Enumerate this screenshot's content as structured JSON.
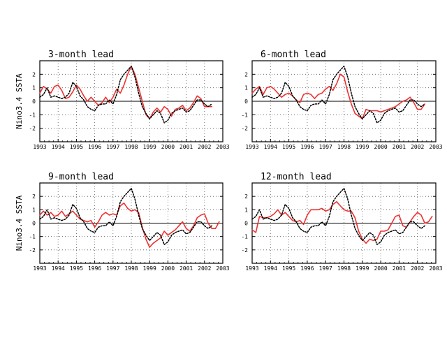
{
  "figure": {
    "colors": {
      "forecast": "#ee3333",
      "observed": "#000000",
      "axis": "#000000",
      "grid": "#555555"
    }
  },
  "chart_data": [
    {
      "type": "line",
      "title": "3-month lead",
      "ylabel": "Nino3.4 SSTA",
      "xlim": [
        1993,
        2003
      ],
      "ylim": [
        -3,
        3
      ],
      "x_ticks": [
        "1993",
        "1994",
        "1995",
        "1996",
        "1997",
        "1998",
        "1999",
        "2000",
        "2001",
        "2002",
        "2003"
      ],
      "y_ticks": [
        "2",
        "1",
        "0",
        "-1",
        "-2"
      ],
      "grid": true,
      "zero_line": true,
      "series": [
        {
          "style": "solid-red",
          "x": [
            1993.0,
            1993.2,
            1993.4,
            1993.6,
            1993.8,
            1994.0,
            1994.2,
            1994.4,
            1994.6,
            1994.8,
            1995.0,
            1995.2,
            1995.4,
            1995.6,
            1995.8,
            1996.0,
            1996.2,
            1996.4,
            1996.6,
            1996.8,
            1997.0,
            1997.2,
            1997.4,
            1997.6,
            1997.8,
            1998.0,
            1998.2,
            1998.4,
            1998.6,
            1998.8,
            1999.0,
            1999.2,
            1999.4,
            1999.6,
            1999.8,
            2000.0,
            2000.2,
            2000.4,
            2000.6,
            2000.8,
            2001.0,
            2001.2,
            2001.4,
            2001.6,
            2001.8,
            2002.0,
            2002.2,
            2002.4
          ],
          "y": [
            0.6,
            1.1,
            0.9,
            0.6,
            1.1,
            1.2,
            0.8,
            0.2,
            0.3,
            0.7,
            1.2,
            0.9,
            0.4,
            0.0,
            0.3,
            0.0,
            -0.3,
            -0.1,
            0.3,
            -0.1,
            0.3,
            0.9,
            0.6,
            1.2,
            2.0,
            2.6,
            2.0,
            1.0,
            0.0,
            -1.0,
            -1.3,
            -0.8,
            -0.5,
            -0.8,
            -0.4,
            -0.6,
            -1.1,
            -0.6,
            -0.5,
            -0.3,
            -0.7,
            -0.5,
            -0.1,
            0.4,
            0.2,
            -0.4,
            -0.4,
            -0.4
          ]
        },
        {
          "style": "dotted-black",
          "x": [
            1993.0,
            1993.2,
            1993.4,
            1993.6,
            1993.8,
            1994.0,
            1994.2,
            1994.4,
            1994.6,
            1994.8,
            1995.0,
            1995.2,
            1995.4,
            1995.6,
            1995.8,
            1996.0,
            1996.2,
            1996.4,
            1996.6,
            1996.8,
            1997.0,
            1997.2,
            1997.4,
            1997.6,
            1997.8,
            1998.0,
            1998.2,
            1998.4,
            1998.6,
            1998.8,
            1999.0,
            1999.2,
            1999.4,
            1999.6,
            1999.8,
            2000.0,
            2000.2,
            2000.4,
            2000.6,
            2000.8,
            2001.0,
            2001.2,
            2001.4,
            2001.6,
            2001.8,
            2002.0,
            2002.2,
            2002.4
          ],
          "y": [
            0.3,
            0.5,
            1.0,
            0.3,
            0.4,
            0.3,
            0.2,
            0.3,
            0.6,
            1.4,
            1.1,
            0.4,
            0.1,
            -0.4,
            -0.6,
            -0.7,
            -0.3,
            -0.2,
            -0.2,
            0.1,
            -0.2,
            0.5,
            1.6,
            2.0,
            2.3,
            2.6,
            1.8,
            0.6,
            -0.4,
            -0.9,
            -1.3,
            -1.0,
            -0.7,
            -0.9,
            -1.6,
            -1.4,
            -0.9,
            -0.7,
            -0.6,
            -0.5,
            -0.8,
            -0.7,
            -0.3,
            0.1,
            0.1,
            -0.2,
            -0.4,
            -0.2
          ]
        }
      ]
    },
    {
      "type": "line",
      "title": "6-month lead",
      "ylabel": "",
      "xlim": [
        1993,
        2003
      ],
      "ylim": [
        -3,
        3
      ],
      "x_ticks": [
        "1993",
        "1994",
        "1995",
        "1996",
        "1997",
        "1998",
        "1999",
        "2000",
        "2001",
        "2002",
        "2003"
      ],
      "y_ticks": [
        "2",
        "1",
        "0",
        "-1",
        "-2"
      ],
      "grid": true,
      "zero_line": true,
      "series": [
        {
          "style": "solid-red",
          "x": [
            1993.0,
            1993.2,
            1993.4,
            1993.6,
            1993.8,
            1994.0,
            1994.2,
            1994.4,
            1994.6,
            1994.8,
            1995.0,
            1995.2,
            1995.4,
            1995.6,
            1995.8,
            1996.0,
            1996.2,
            1996.4,
            1996.6,
            1996.8,
            1997.0,
            1997.2,
            1997.4,
            1997.6,
            1997.8,
            1998.0,
            1998.2,
            1998.4,
            1998.6,
            1998.8,
            1999.0,
            1999.2,
            1999.4,
            1999.6,
            1999.8,
            2000.0,
            2000.2,
            2000.4,
            2000.6,
            2000.8,
            2001.0,
            2001.2,
            2001.4,
            2001.6,
            2001.8,
            2002.0,
            2002.2,
            2002.4
          ],
          "y": [
            0.6,
            0.9,
            1.1,
            0.5,
            1.0,
            1.1,
            0.9,
            0.6,
            0.3,
            0.5,
            0.6,
            0.4,
            0.1,
            -0.1,
            0.5,
            0.6,
            0.5,
            0.2,
            0.5,
            0.6,
            0.9,
            1.1,
            0.8,
            1.3,
            2.0,
            1.8,
            0.7,
            -0.2,
            -0.9,
            -1.1,
            -1.3,
            -0.6,
            -0.7,
            -0.7,
            -0.7,
            -0.8,
            -0.7,
            -0.6,
            -0.5,
            -0.4,
            -0.2,
            0.0,
            0.1,
            0.3,
            -0.1,
            -0.6,
            -0.6,
            -0.2
          ]
        },
        {
          "style": "dotted-black",
          "x": [
            1993.0,
            1993.2,
            1993.4,
            1993.6,
            1993.8,
            1994.0,
            1994.2,
            1994.4,
            1994.6,
            1994.8,
            1995.0,
            1995.2,
            1995.4,
            1995.6,
            1995.8,
            1996.0,
            1996.2,
            1996.4,
            1996.6,
            1996.8,
            1997.0,
            1997.2,
            1997.4,
            1997.6,
            1997.8,
            1998.0,
            1998.2,
            1998.4,
            1998.6,
            1998.8,
            1999.0,
            1999.2,
            1999.4,
            1999.6,
            1999.8,
            2000.0,
            2000.2,
            2000.4,
            2000.6,
            2000.8,
            2001.0,
            2001.2,
            2001.4,
            2001.6,
            2001.8,
            2002.0,
            2002.2,
            2002.4
          ],
          "y": [
            0.3,
            0.5,
            1.0,
            0.3,
            0.4,
            0.3,
            0.2,
            0.3,
            0.6,
            1.4,
            1.1,
            0.4,
            0.1,
            -0.4,
            -0.6,
            -0.7,
            -0.3,
            -0.2,
            -0.2,
            0.1,
            -0.2,
            0.5,
            1.6,
            2.0,
            2.3,
            2.6,
            1.8,
            0.6,
            -0.4,
            -0.9,
            -1.3,
            -1.0,
            -0.7,
            -0.9,
            -1.6,
            -1.4,
            -0.9,
            -0.7,
            -0.6,
            -0.5,
            -0.8,
            -0.7,
            -0.3,
            0.1,
            0.1,
            -0.2,
            -0.4,
            -0.2
          ]
        }
      ]
    },
    {
      "type": "line",
      "title": "9-month lead",
      "ylabel": "Nino3.4 SSTA",
      "xlim": [
        1993,
        2003
      ],
      "ylim": [
        -3,
        3
      ],
      "x_ticks": [
        "1993",
        "1994",
        "1995",
        "1996",
        "1997",
        "1998",
        "1999",
        "2000",
        "2001",
        "2002",
        "2003"
      ],
      "y_ticks": [
        "2",
        "1",
        "0",
        "-1",
        "-2"
      ],
      "grid": true,
      "zero_line": true,
      "series": [
        {
          "style": "solid-red",
          "x": [
            1993.0,
            1993.2,
            1993.4,
            1993.6,
            1993.8,
            1994.0,
            1994.2,
            1994.4,
            1994.6,
            1994.8,
            1995.0,
            1995.2,
            1995.4,
            1995.6,
            1995.8,
            1996.0,
            1996.2,
            1996.4,
            1996.6,
            1996.8,
            1997.0,
            1997.2,
            1997.4,
            1997.6,
            1997.8,
            1998.0,
            1998.2,
            1998.4,
            1998.6,
            1998.8,
            1999.0,
            1999.2,
            1999.4,
            1999.6,
            1999.8,
            2000.0,
            2000.2,
            2000.4,
            2000.6,
            2000.8,
            2001.0,
            2001.2,
            2001.4,
            2001.6,
            2001.8,
            2002.0,
            2002.2,
            2002.4,
            2002.6,
            2002.8
          ],
          "y": [
            0.6,
            0.9,
            0.6,
            0.8,
            0.5,
            0.6,
            0.9,
            0.5,
            0.7,
            0.9,
            0.6,
            0.3,
            0.2,
            0.1,
            0.2,
            -0.3,
            0.1,
            0.6,
            0.8,
            0.6,
            0.7,
            0.6,
            1.3,
            1.5,
            1.1,
            0.9,
            1.0,
            0.8,
            -0.3,
            -1.2,
            -1.8,
            -1.5,
            -1.3,
            -1.1,
            -0.6,
            -0.9,
            -0.7,
            -0.5,
            -0.2,
            0.1,
            -0.4,
            -0.6,
            -0.2,
            0.4,
            0.6,
            0.7,
            0.0,
            -0.4,
            -0.4,
            0.1
          ]
        },
        {
          "style": "dotted-black",
          "x": [
            1993.0,
            1993.2,
            1993.4,
            1993.6,
            1993.8,
            1994.0,
            1994.2,
            1994.4,
            1994.6,
            1994.8,
            1995.0,
            1995.2,
            1995.4,
            1995.6,
            1995.8,
            1996.0,
            1996.2,
            1996.4,
            1996.6,
            1996.8,
            1997.0,
            1997.2,
            1997.4,
            1997.6,
            1997.8,
            1998.0,
            1998.2,
            1998.4,
            1998.6,
            1998.8,
            1999.0,
            1999.2,
            1999.4,
            1999.6,
            1999.8,
            2000.0,
            2000.2,
            2000.4,
            2000.6,
            2000.8,
            2001.0,
            2001.2,
            2001.4,
            2001.6,
            2001.8,
            2002.0,
            2002.2,
            2002.4
          ],
          "y": [
            0.3,
            0.5,
            1.0,
            0.3,
            0.4,
            0.3,
            0.2,
            0.3,
            0.6,
            1.4,
            1.1,
            0.4,
            0.1,
            -0.4,
            -0.6,
            -0.7,
            -0.3,
            -0.2,
            -0.2,
            0.1,
            -0.2,
            0.5,
            1.6,
            2.0,
            2.3,
            2.6,
            1.8,
            0.6,
            -0.4,
            -0.9,
            -1.3,
            -1.0,
            -0.7,
            -0.9,
            -1.6,
            -1.4,
            -0.9,
            -0.7,
            -0.6,
            -0.5,
            -0.8,
            -0.7,
            -0.3,
            0.1,
            0.1,
            -0.2,
            -0.4,
            -0.2
          ]
        }
      ]
    },
    {
      "type": "line",
      "title": "12-month lead",
      "ylabel": "",
      "xlim": [
        1993,
        2003
      ],
      "ylim": [
        -3,
        3
      ],
      "x_ticks": [
        "1993",
        "1994",
        "1995",
        "1996",
        "1997",
        "1998",
        "1999",
        "2000",
        "2001",
        "2002",
        "2003"
      ],
      "y_ticks": [
        "2",
        "1",
        "0",
        "-1",
        "-2"
      ],
      "grid": true,
      "zero_line": true,
      "series": [
        {
          "style": "solid-red",
          "x": [
            1993.0,
            1993.2,
            1993.4,
            1993.6,
            1993.8,
            1994.0,
            1994.2,
            1994.4,
            1994.6,
            1994.8,
            1995.0,
            1995.2,
            1995.4,
            1995.6,
            1995.8,
            1996.0,
            1996.2,
            1996.4,
            1996.6,
            1996.8,
            1997.0,
            1997.2,
            1997.4,
            1997.6,
            1997.8,
            1998.0,
            1998.2,
            1998.4,
            1998.6,
            1998.8,
            1999.0,
            1999.2,
            1999.4,
            1999.6,
            1999.8,
            2000.0,
            2000.2,
            2000.4,
            2000.6,
            2000.8,
            2001.0,
            2001.2,
            2001.4,
            2001.6,
            2001.8,
            2002.0,
            2002.2,
            2002.4,
            2002.6,
            2002.8
          ],
          "y": [
            -0.5,
            -0.7,
            0.5,
            0.4,
            0.4,
            0.5,
            0.7,
            1.0,
            0.6,
            0.8,
            0.5,
            0.2,
            0.1,
            0.2,
            -0.1,
            0.6,
            1.0,
            1.0,
            1.0,
            1.1,
            0.9,
            1.0,
            1.4,
            1.6,
            1.3,
            1.0,
            0.9,
            0.9,
            0.4,
            -0.6,
            -1.2,
            -1.5,
            -1.2,
            -1.3,
            -1.2,
            -0.6,
            -0.6,
            -0.5,
            0.0,
            0.5,
            0.6,
            -0.2,
            -0.3,
            0.1,
            0.5,
            0.8,
            0.6,
            0.0,
            0.1,
            0.5
          ]
        },
        {
          "style": "dotted-black",
          "x": [
            1993.0,
            1993.2,
            1993.4,
            1993.6,
            1993.8,
            1994.0,
            1994.2,
            1994.4,
            1994.6,
            1994.8,
            1995.0,
            1995.2,
            1995.4,
            1995.6,
            1995.8,
            1996.0,
            1996.2,
            1996.4,
            1996.6,
            1996.8,
            1997.0,
            1997.2,
            1997.4,
            1997.6,
            1997.8,
            1998.0,
            1998.2,
            1998.4,
            1998.6,
            1998.8,
            1999.0,
            1999.2,
            1999.4,
            1999.6,
            1999.8,
            2000.0,
            2000.2,
            2000.4,
            2000.6,
            2000.8,
            2001.0,
            2001.2,
            2001.4,
            2001.6,
            2001.8,
            2002.0,
            2002.2,
            2002.4
          ],
          "y": [
            0.3,
            0.5,
            1.0,
            0.3,
            0.4,
            0.3,
            0.2,
            0.3,
            0.6,
            1.4,
            1.1,
            0.4,
            0.1,
            -0.4,
            -0.6,
            -0.7,
            -0.3,
            -0.2,
            -0.2,
            0.1,
            -0.2,
            0.5,
            1.6,
            2.0,
            2.3,
            2.6,
            1.8,
            0.6,
            -0.4,
            -0.9,
            -1.3,
            -1.0,
            -0.7,
            -0.9,
            -1.6,
            -1.4,
            -0.9,
            -0.7,
            -0.6,
            -0.5,
            -0.8,
            -0.7,
            -0.3,
            0.1,
            0.1,
            -0.2,
            -0.4,
            -0.2
          ]
        }
      ]
    }
  ]
}
